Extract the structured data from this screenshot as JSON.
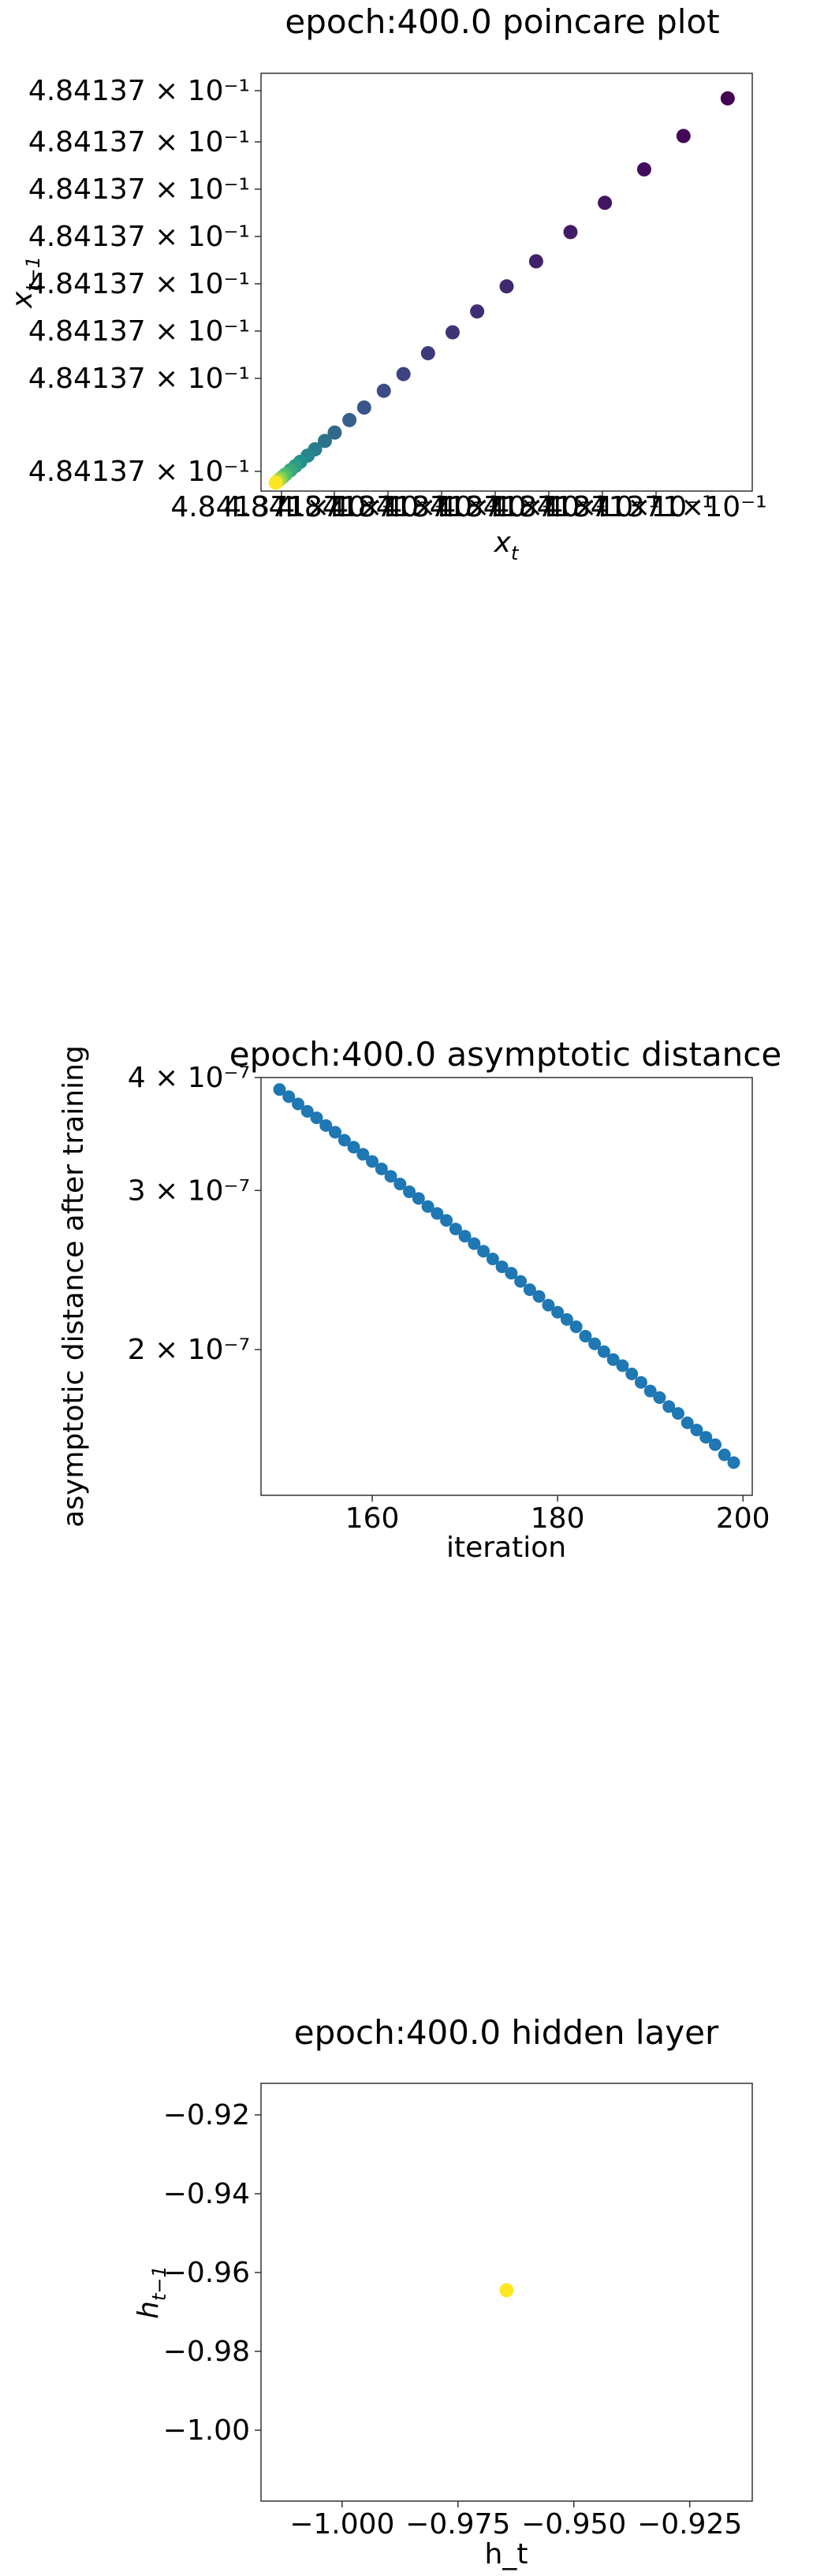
{
  "colors": {
    "background": "#ffffff",
    "axis": "#333333",
    "series_blue": "#1f77b4",
    "viridis_dark": "#440154",
    "viridis_yellow": "#fde725"
  },
  "chart_data": [
    {
      "type": "scatter",
      "title": "epoch:400.0 poincare plot",
      "xlabel": "x_t",
      "ylabel": "x_{t-1}",
      "x_tick_labels": [
        "4.841371×10⁻¹",
        "4.841371×10⁻¹",
        "4.841371×10⁻¹",
        "4.841371×10⁻¹",
        "4.841371×10⁻¹",
        "4.841371×10⁻¹",
        "4.841371×10⁻¹",
        "4.841371×10⁻¹"
      ],
      "y_tick_labels": [
        "4.84137 × 10⁻¹",
        "4.84137 × 10⁻¹",
        "4.84137 × 10⁻¹",
        "4.84137 × 10⁻¹",
        "4.84137 × 10⁻¹",
        "4.84137 × 10⁻¹",
        "4.84137 × 10⁻¹",
        "4.84137 × 10⁻¹"
      ],
      "colormap": "viridis",
      "grid": false,
      "xlim": [
        0,
        1
      ],
      "ylim": [
        0,
        1
      ],
      "points": [
        {
          "x": 0.95,
          "y": 0.94,
          "c": 0.0
        },
        {
          "x": 0.86,
          "y": 0.85,
          "c": 0.02
        },
        {
          "x": 0.78,
          "y": 0.77,
          "c": 0.04
        },
        {
          "x": 0.7,
          "y": 0.69,
          "c": 0.06
        },
        {
          "x": 0.63,
          "y": 0.62,
          "c": 0.08
        },
        {
          "x": 0.56,
          "y": 0.55,
          "c": 0.1
        },
        {
          "x": 0.5,
          "y": 0.49,
          "c": 0.12
        },
        {
          "x": 0.44,
          "y": 0.43,
          "c": 0.14
        },
        {
          "x": 0.39,
          "y": 0.38,
          "c": 0.16
        },
        {
          "x": 0.34,
          "y": 0.33,
          "c": 0.18
        },
        {
          "x": 0.29,
          "y": 0.28,
          "c": 0.2
        },
        {
          "x": 0.25,
          "y": 0.24,
          "c": 0.23
        },
        {
          "x": 0.21,
          "y": 0.2,
          "c": 0.26
        },
        {
          "x": 0.18,
          "y": 0.17,
          "c": 0.3
        },
        {
          "x": 0.15,
          "y": 0.14,
          "c": 0.34
        },
        {
          "x": 0.13,
          "y": 0.12,
          "c": 0.38
        },
        {
          "x": 0.11,
          "y": 0.1,
          "c": 0.42
        },
        {
          "x": 0.095,
          "y": 0.085,
          "c": 0.46
        },
        {
          "x": 0.08,
          "y": 0.07,
          "c": 0.5
        },
        {
          "x": 0.07,
          "y": 0.06,
          "c": 0.55
        },
        {
          "x": 0.06,
          "y": 0.05,
          "c": 0.6
        },
        {
          "x": 0.05,
          "y": 0.04,
          "c": 0.66
        },
        {
          "x": 0.045,
          "y": 0.035,
          "c": 0.72
        },
        {
          "x": 0.04,
          "y": 0.03,
          "c": 0.8
        },
        {
          "x": 0.035,
          "y": 0.025,
          "c": 0.88
        },
        {
          "x": 0.03,
          "y": 0.02,
          "c": 1.0
        }
      ]
    },
    {
      "type": "scatter",
      "title": "epoch:400.0 asymptotic distance",
      "xlabel": "iteration",
      "ylabel": "asymptotic distance after training",
      "yscale": "log",
      "grid": false,
      "xlim": [
        148,
        201
      ],
      "ylim": [
        1.38e-07,
        4e-07
      ],
      "x_ticks": [
        160,
        180,
        200
      ],
      "x_tick_labels": [
        "160",
        "180",
        "200"
      ],
      "y_ticks": [
        4e-07,
        3e-07,
        2e-07
      ],
      "y_tick_labels": [
        "4 × 10⁻⁷",
        "3 × 10⁻⁷",
        "2 × 10⁻⁷"
      ],
      "x": [
        150,
        151,
        152,
        153,
        154,
        155,
        156,
        157,
        158,
        159,
        160,
        161,
        162,
        163,
        164,
        165,
        166,
        167,
        168,
        169,
        170,
        171,
        172,
        173,
        174,
        175,
        176,
        177,
        178,
        179,
        180,
        181,
        182,
        183,
        184,
        185,
        186,
        187,
        188,
        189,
        190,
        191,
        192,
        193,
        194,
        195,
        196,
        197,
        198,
        199
      ],
      "y": [
        3.88e-07,
        3.81e-07,
        3.74e-07,
        3.67e-07,
        3.61e-07,
        3.54e-07,
        3.48e-07,
        3.41e-07,
        3.35e-07,
        3.29e-07,
        3.23e-07,
        3.17e-07,
        3.11e-07,
        3.05e-07,
        2.99e-07,
        2.94e-07,
        2.88e-07,
        2.83e-07,
        2.78e-07,
        2.72e-07,
        2.67e-07,
        2.62e-07,
        2.57e-07,
        2.52e-07,
        2.47e-07,
        2.43e-07,
        2.38e-07,
        2.33e-07,
        2.29e-07,
        2.24e-07,
        2.2e-07,
        2.16e-07,
        2.12e-07,
        2.07e-07,
        2.03e-07,
        1.99e-07,
        1.95e-07,
        1.92e-07,
        1.88e-07,
        1.84e-07,
        1.8e-07,
        1.77e-07,
        1.73e-07,
        1.7e-07,
        1.66e-07,
        1.63e-07,
        1.6e-07,
        1.57e-07,
        1.53e-07,
        1.5e-07
      ]
    },
    {
      "type": "scatter",
      "title": "epoch:400.0 hidden layer",
      "xlabel": "h_t",
      "ylabel": "h_{t-1}",
      "grid": false,
      "xlim": [
        -1.0175,
        -0.9115
      ],
      "ylim": [
        -1.018,
        -0.912
      ],
      "x_ticks": [
        -1.0,
        -0.975,
        -0.95,
        -0.925
      ],
      "x_tick_labels": [
        "−1.000",
        "−0.975",
        "−0.950",
        "−0.925"
      ],
      "y_ticks": [
        -0.92,
        -0.94,
        -0.96,
        -0.98,
        -1.0
      ],
      "y_tick_labels": [
        "−0.92",
        "−0.94",
        "−0.96",
        "−0.98",
        "−1.00"
      ],
      "points": [
        {
          "x": -0.9645,
          "y": -0.9645
        }
      ]
    }
  ]
}
